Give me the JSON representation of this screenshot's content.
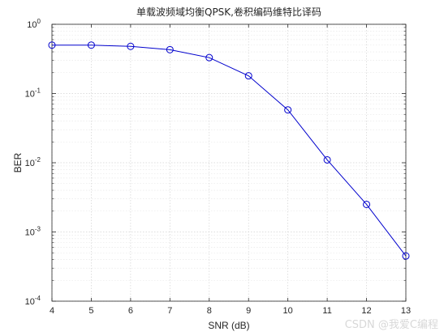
{
  "chart_data": {
    "type": "line",
    "title": "单载波频域均衡QPSK,卷积编码维特比译码",
    "xlabel": "SNR (dB)",
    "ylabel": "BER",
    "x_scale": "linear",
    "y_scale": "log",
    "xlim": [
      4,
      13
    ],
    "ylim": [
      0.0001,
      1
    ],
    "grid": true,
    "minor_grid": true,
    "x_ticks": [
      4,
      5,
      6,
      7,
      8,
      9,
      10,
      11,
      12,
      13
    ],
    "y_tick_labels": [
      {
        "value": 1,
        "base": "10",
        "exp": "0"
      },
      {
        "value": 0.1,
        "base": "10",
        "exp": "-1"
      },
      {
        "value": 0.01,
        "base": "10",
        "exp": "-2"
      },
      {
        "value": 0.001,
        "base": "10",
        "exp": "-3"
      },
      {
        "value": 0.0001,
        "base": "10",
        "exp": "-4"
      }
    ],
    "series": [
      {
        "color": "#0000cd",
        "marker": "circle",
        "x": [
          4,
          5,
          6,
          7,
          8,
          9,
          10,
          11,
          12,
          13
        ],
        "y": [
          0.5,
          0.5,
          0.48,
          0.43,
          0.33,
          0.18,
          0.058,
          0.011,
          0.0025,
          0.00045
        ]
      }
    ]
  },
  "watermark": "CSDN @我爱C编程"
}
